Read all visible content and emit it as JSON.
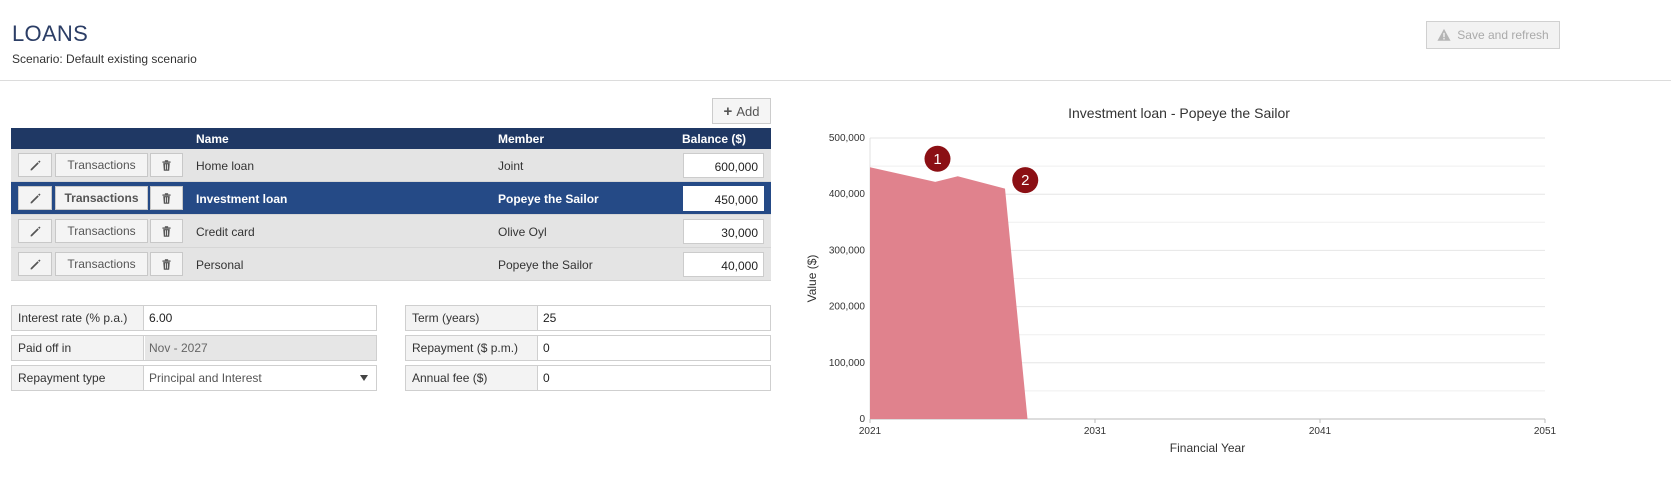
{
  "header": {
    "title": "LOANS",
    "subtitle": "Scenario: Default existing scenario",
    "save_label": "Save and refresh"
  },
  "table": {
    "add_label": "Add",
    "columns": {
      "name": "Name",
      "member": "Member",
      "balance": "Balance ($)"
    },
    "transactions_label": "Transactions",
    "rows": [
      {
        "name": "Home loan",
        "member": "Joint",
        "balance": "600,000",
        "selected": false
      },
      {
        "name": "Investment loan",
        "member": "Popeye the Sailor",
        "balance": "450,000",
        "selected": true
      },
      {
        "name": "Credit card",
        "member": "Olive Oyl",
        "balance": "30,000",
        "selected": false
      },
      {
        "name": "Personal",
        "member": "Popeye the Sailor",
        "balance": "40,000",
        "selected": false
      }
    ]
  },
  "form": {
    "interest_rate": {
      "label": "Interest rate (% p.a.)",
      "value": "6.00"
    },
    "paid_off": {
      "label": "Paid off in",
      "value": "Nov - 2027"
    },
    "repayment_type": {
      "label": "Repayment type",
      "value": "Principal and Interest"
    },
    "term": {
      "label": "Term (years)",
      "value": "25"
    },
    "repayment": {
      "label": "Repayment ($ p.m.)",
      "value": "0"
    },
    "annual_fee": {
      "label": "Annual fee ($)",
      "value": "0"
    }
  },
  "colors": {
    "header_bar": "#1f3864",
    "selected_row": "#254a86",
    "area_fill": "#e0828d",
    "marker": "#8b0f14"
  },
  "chart_data": {
    "type": "area",
    "title": "Investment loan - Popeye the Sailor",
    "xlabel": "Financial Year",
    "ylabel": "Value ($)",
    "xlim": [
      2021,
      2051
    ],
    "ylim": [
      0,
      500000
    ],
    "x_ticks": [
      "2021",
      "2031",
      "2041",
      "2051"
    ],
    "y_ticks": [
      "0",
      "100,000",
      "200,000",
      "300,000",
      "400,000",
      "500,000"
    ],
    "grid": true,
    "series": [
      {
        "x": [
          2021,
          2023.9,
          2024.9,
          2027.0,
          2028.0
        ],
        "y": [
          448000,
          422000,
          432000,
          410000,
          0
        ]
      }
    ],
    "markers": [
      {
        "label": "1",
        "x": 2024.0,
        "y": 463000
      },
      {
        "label": "2",
        "x": 2027.9,
        "y": 425000
      }
    ]
  }
}
